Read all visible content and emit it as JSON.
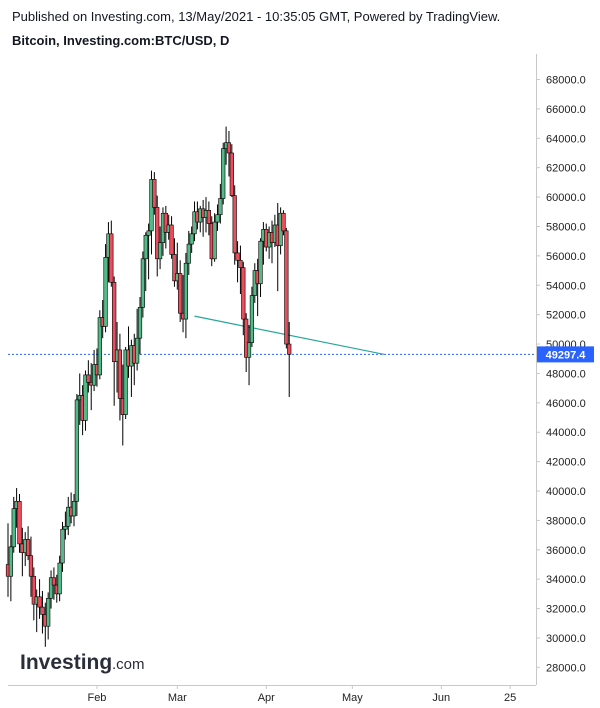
{
  "header": {
    "published": "Published on Investing.com, 13/May/2021 - 10:35:05 GMT, Powered by TradingView.",
    "title": "Bitcoin, Investing.com:BTC/USD, D"
  },
  "logo": {
    "main": "Investing",
    "suffix": ".com"
  },
  "colors": {
    "up": "#53b987",
    "down": "#eb4d5c",
    "wick": "#000000",
    "trendline": "#26a69a",
    "price_line": "#2962ff",
    "price_tag": "#2962ff",
    "axis": "#c8c8c8"
  },
  "chart_data": {
    "type": "candlestick",
    "symbol": "BTC/USD",
    "interval": "D",
    "ylim": [
      26800,
      69600
    ],
    "y_ticks": [
      "28000.0",
      "30000.0",
      "32000.0",
      "34000.0",
      "36000.0",
      "38000.0",
      "40000.0",
      "42000.0",
      "44000.0",
      "46000.0",
      "48000.0",
      "50000.0",
      "52000.0",
      "54000.0",
      "56000.0",
      "58000.0",
      "60000.0",
      "62000.0",
      "64000.0",
      "66000.0",
      "68000.0"
    ],
    "x_ticks": [
      "Feb",
      "Mar",
      "Apr",
      "May",
      "Jun",
      "25"
    ],
    "x_tick_days": [
      31,
      59,
      90,
      120,
      151,
      175
    ],
    "x_range_days": [
      0,
      184
    ],
    "last_price": 49297.4,
    "last_price_label": "49297.4",
    "trendline": [
      {
        "day": 65,
        "price": 51900
      },
      {
        "day": 131,
        "price": 49300
      }
    ],
    "candles": [
      {
        "day": 0,
        "o": 35000,
        "h": 37800,
        "l": 32800,
        "c": 34200
      },
      {
        "day": 1,
        "o": 34200,
        "h": 37000,
        "l": 32500,
        "c": 36200
      },
      {
        "day": 2,
        "o": 36200,
        "h": 39600,
        "l": 35800,
        "c": 38800
      },
      {
        "day": 3,
        "o": 38800,
        "h": 40200,
        "l": 37500,
        "c": 39300
      },
      {
        "day": 4,
        "o": 39300,
        "h": 39800,
        "l": 35800,
        "c": 36400
      },
      {
        "day": 5,
        "o": 36400,
        "h": 37500,
        "l": 34200,
        "c": 35800
      },
      {
        "day": 6,
        "o": 35800,
        "h": 37200,
        "l": 34900,
        "c": 36700
      },
      {
        "day": 7,
        "o": 36700,
        "h": 37600,
        "l": 35300,
        "c": 35600
      },
      {
        "day": 8,
        "o": 35600,
        "h": 36900,
        "l": 32800,
        "c": 34200
      },
      {
        "day": 9,
        "o": 34200,
        "h": 34800,
        "l": 31200,
        "c": 32300
      },
      {
        "day": 10,
        "o": 32300,
        "h": 33300,
        "l": 30400,
        "c": 32800
      },
      {
        "day": 11,
        "o": 32800,
        "h": 34000,
        "l": 31300,
        "c": 32100
      },
      {
        "day": 12,
        "o": 32100,
        "h": 33200,
        "l": 30300,
        "c": 31600
      },
      {
        "day": 13,
        "o": 31600,
        "h": 32400,
        "l": 29400,
        "c": 30800
      },
      {
        "day": 14,
        "o": 30800,
        "h": 33100,
        "l": 29900,
        "c": 32700
      },
      {
        "day": 15,
        "o": 32700,
        "h": 34600,
        "l": 32000,
        "c": 34100
      },
      {
        "day": 16,
        "o": 34100,
        "h": 34800,
        "l": 32600,
        "c": 33600
      },
      {
        "day": 17,
        "o": 33600,
        "h": 34300,
        "l": 32400,
        "c": 33000
      },
      {
        "day": 18,
        "o": 33000,
        "h": 35600,
        "l": 32500,
        "c": 35100
      },
      {
        "day": 19,
        "o": 35100,
        "h": 37900,
        "l": 34500,
        "c": 37400
      },
      {
        "day": 20,
        "o": 37400,
        "h": 38600,
        "l": 36700,
        "c": 37600
      },
      {
        "day": 21,
        "o": 37600,
        "h": 39600,
        "l": 37000,
        "c": 38900
      },
      {
        "day": 22,
        "o": 38900,
        "h": 39900,
        "l": 37800,
        "c": 38300
      },
      {
        "day": 23,
        "o": 38300,
        "h": 39800,
        "l": 37600,
        "c": 39300
      },
      {
        "day": 24,
        "o": 39300,
        "h": 46600,
        "l": 38300,
        "c": 46200
      },
      {
        "day": 25,
        "o": 46200,
        "h": 48000,
        "l": 44500,
        "c": 46500
      },
      {
        "day": 26,
        "o": 46500,
        "h": 47200,
        "l": 43800,
        "c": 44800
      },
      {
        "day": 27,
        "o": 44800,
        "h": 48200,
        "l": 44100,
        "c": 47900
      },
      {
        "day": 28,
        "o": 47900,
        "h": 48900,
        "l": 46700,
        "c": 47400
      },
      {
        "day": 29,
        "o": 47400,
        "h": 48700,
        "l": 45500,
        "c": 47200
      },
      {
        "day": 30,
        "o": 47200,
        "h": 49600,
        "l": 46800,
        "c": 48600
      },
      {
        "day": 31,
        "o": 48600,
        "h": 49700,
        "l": 47100,
        "c": 47900
      },
      {
        "day": 32,
        "o": 47900,
        "h": 52300,
        "l": 47600,
        "c": 51800
      },
      {
        "day": 33,
        "o": 51800,
        "h": 53000,
        "l": 50400,
        "c": 51200
      },
      {
        "day": 34,
        "o": 51200,
        "h": 56800,
        "l": 50800,
        "c": 55900
      },
      {
        "day": 35,
        "o": 55900,
        "h": 58300,
        "l": 54200,
        "c": 57500
      },
      {
        "day": 36,
        "o": 57500,
        "h": 58400,
        "l": 53900,
        "c": 54200
      },
      {
        "day": 37,
        "o": 54200,
        "h": 54600,
        "l": 45800,
        "c": 48800
      },
      {
        "day": 38,
        "o": 48800,
        "h": 51500,
        "l": 46700,
        "c": 49600
      },
      {
        "day": 39,
        "o": 49600,
        "h": 50700,
        "l": 44800,
        "c": 46300
      },
      {
        "day": 40,
        "o": 46300,
        "h": 48600,
        "l": 43100,
        "c": 45200
      },
      {
        "day": 41,
        "o": 45200,
        "h": 49800,
        "l": 44900,
        "c": 49600
      },
      {
        "day": 42,
        "o": 49600,
        "h": 51200,
        "l": 47700,
        "c": 48500
      },
      {
        "day": 43,
        "o": 48500,
        "h": 50300,
        "l": 46400,
        "c": 49900
      },
      {
        "day": 44,
        "o": 49900,
        "h": 50700,
        "l": 47200,
        "c": 48700
      },
      {
        "day": 45,
        "o": 48700,
        "h": 52400,
        "l": 48200,
        "c": 50400
      },
      {
        "day": 46,
        "o": 50400,
        "h": 53200,
        "l": 49300,
        "c": 52500
      },
      {
        "day": 47,
        "o": 52500,
        "h": 56300,
        "l": 51800,
        "c": 55800
      },
      {
        "day": 48,
        "o": 55800,
        "h": 57600,
        "l": 53600,
        "c": 57400
      },
      {
        "day": 49,
        "o": 57400,
        "h": 58200,
        "l": 54400,
        "c": 57700
      },
      {
        "day": 50,
        "o": 57700,
        "h": 61800,
        "l": 56100,
        "c": 61200
      },
      {
        "day": 51,
        "o": 61200,
        "h": 61700,
        "l": 58800,
        "c": 59300
      },
      {
        "day": 52,
        "o": 59300,
        "h": 60100,
        "l": 54600,
        "c": 55800
      },
      {
        "day": 53,
        "o": 55800,
        "h": 58000,
        "l": 55100,
        "c": 56900
      },
      {
        "day": 54,
        "o": 56900,
        "h": 59300,
        "l": 56000,
        "c": 58900
      },
      {
        "day": 55,
        "o": 58900,
        "h": 59400,
        "l": 56500,
        "c": 57600
      },
      {
        "day": 56,
        "o": 57600,
        "h": 58800,
        "l": 57100,
        "c": 58100
      },
      {
        "day": 57,
        "o": 58100,
        "h": 58700,
        "l": 55800,
        "c": 56100
      },
      {
        "day": 58,
        "o": 56100,
        "h": 57200,
        "l": 53900,
        "c": 54300
      },
      {
        "day": 59,
        "o": 54300,
        "h": 56900,
        "l": 53700,
        "c": 54800
      },
      {
        "day": 60,
        "o": 54800,
        "h": 55700,
        "l": 51500,
        "c": 52100
      },
      {
        "day": 61,
        "o": 52100,
        "h": 54700,
        "l": 50800,
        "c": 51700
      },
      {
        "day": 62,
        "o": 51700,
        "h": 56200,
        "l": 50400,
        "c": 55500
      },
      {
        "day": 63,
        "o": 55500,
        "h": 57700,
        "l": 54700,
        "c": 56800
      },
      {
        "day": 64,
        "o": 56800,
        "h": 58000,
        "l": 56200,
        "c": 57500
      },
      {
        "day": 65,
        "o": 57500,
        "h": 59700,
        "l": 57000,
        "c": 59000
      },
      {
        "day": 66,
        "o": 59000,
        "h": 59700,
        "l": 57800,
        "c": 58300
      },
      {
        "day": 67,
        "o": 58300,
        "h": 59400,
        "l": 57600,
        "c": 59200
      },
      {
        "day": 68,
        "o": 59200,
        "h": 59800,
        "l": 57300,
        "c": 58600
      },
      {
        "day": 69,
        "o": 58600,
        "h": 60000,
        "l": 57600,
        "c": 59100
      },
      {
        "day": 70,
        "o": 59100,
        "h": 59700,
        "l": 57400,
        "c": 58200
      },
      {
        "day": 71,
        "o": 58200,
        "h": 58700,
        "l": 55300,
        "c": 55800
      },
      {
        "day": 72,
        "o": 55800,
        "h": 58900,
        "l": 55600,
        "c": 58300
      },
      {
        "day": 73,
        "o": 58300,
        "h": 59500,
        "l": 57700,
        "c": 58800
      },
      {
        "day": 74,
        "o": 58800,
        "h": 60900,
        "l": 58200,
        "c": 59900
      },
      {
        "day": 75,
        "o": 59900,
        "h": 63700,
        "l": 59500,
        "c": 63300
      },
      {
        "day": 76,
        "o": 63300,
        "h": 64800,
        "l": 62200,
        "c": 63700
      },
      {
        "day": 77,
        "o": 63700,
        "h": 64500,
        "l": 61400,
        "c": 63000
      },
      {
        "day": 78,
        "o": 63000,
        "h": 63600,
        "l": 60000,
        "c": 60100
      },
      {
        "day": 79,
        "o": 60100,
        "h": 60800,
        "l": 55400,
        "c": 56200
      },
      {
        "day": 80,
        "o": 56200,
        "h": 57000,
        "l": 54200,
        "c": 55700
      },
      {
        "day": 81,
        "o": 55700,
        "h": 56700,
        "l": 53400,
        "c": 55200
      },
      {
        "day": 82,
        "o": 55200,
        "h": 55600,
        "l": 50600,
        "c": 51700
      },
      {
        "day": 83,
        "o": 51700,
        "h": 52100,
        "l": 48100,
        "c": 49100
      },
      {
        "day": 84,
        "o": 49100,
        "h": 51300,
        "l": 47200,
        "c": 50100
      },
      {
        "day": 85,
        "o": 50100,
        "h": 53900,
        "l": 49800,
        "c": 53300
      },
      {
        "day": 86,
        "o": 53300,
        "h": 55500,
        "l": 52800,
        "c": 55000
      },
      {
        "day": 87,
        "o": 55000,
        "h": 55800,
        "l": 51900,
        "c": 54100
      },
      {
        "day": 88,
        "o": 54100,
        "h": 57200,
        "l": 53200,
        "c": 57000
      },
      {
        "day": 89,
        "o": 57000,
        "h": 58300,
        "l": 55400,
        "c": 57800
      },
      {
        "day": 90,
        "o": 57800,
        "h": 58200,
        "l": 56300,
        "c": 56600
      },
      {
        "day": 91,
        "o": 56600,
        "h": 58000,
        "l": 55800,
        "c": 57600
      },
      {
        "day": 92,
        "o": 57600,
        "h": 58400,
        "l": 55500,
        "c": 56900
      },
      {
        "day": 93,
        "o": 56900,
        "h": 58800,
        "l": 56600,
        "c": 58100
      },
      {
        "day": 94,
        "o": 58100,
        "h": 59600,
        "l": 53600,
        "c": 56700
      },
      {
        "day": 95,
        "o": 56700,
        "h": 59300,
        "l": 56100,
        "c": 58900
      },
      {
        "day": 96,
        "o": 58900,
        "h": 59100,
        "l": 57400,
        "c": 57700
      },
      {
        "day": 97,
        "o": 57700,
        "h": 57900,
        "l": 49700,
        "c": 50000
      },
      {
        "day": 98,
        "o": 50000,
        "h": 51500,
        "l": 46400,
        "c": 49300
      }
    ]
  }
}
